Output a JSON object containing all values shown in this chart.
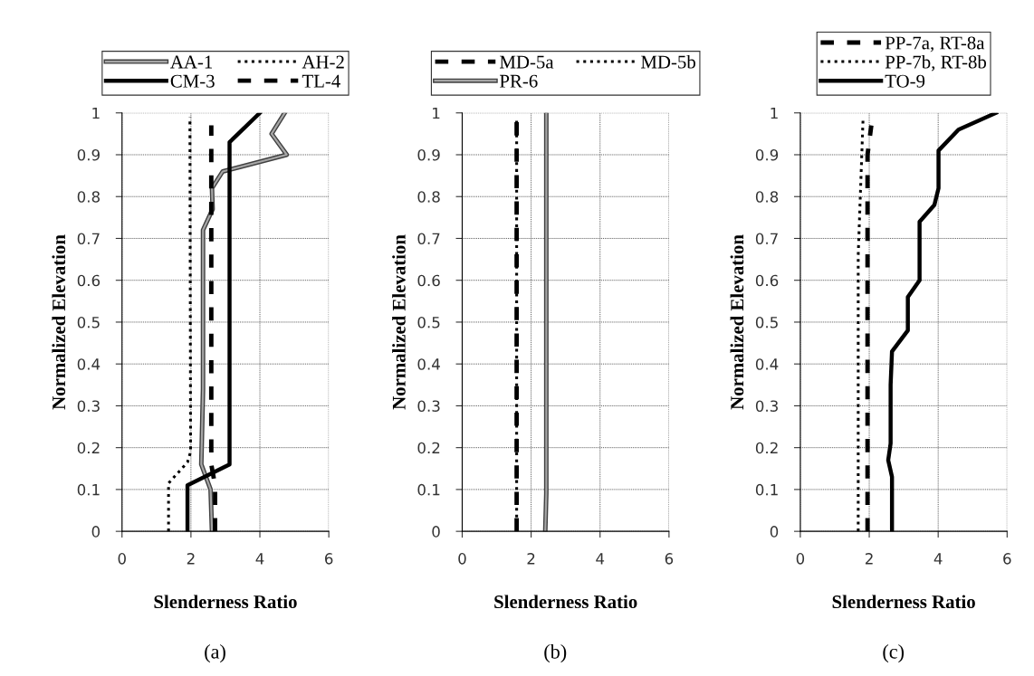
{
  "chart_data": [
    {
      "type": "line",
      "xlabel": "Slenderness Ratio",
      "ylabel": "Normalized Elevation",
      "xlim": [
        0,
        6
      ],
      "xticks": [
        0,
        2,
        4,
        6
      ],
      "ylim": [
        0,
        1
      ],
      "yticks": [
        0,
        0.1,
        0.2,
        0.3,
        0.4,
        0.5,
        0.6,
        0.7,
        0.8,
        0.9,
        1
      ],
      "grid": true,
      "legend": "top",
      "annotations": [
        "(a)"
      ],
      "series": [
        {
          "name": "AA-1",
          "color": "#a6a6a6",
          "line_style": "solid",
          "x": [
            2.61,
            2.57,
            2.3,
            2.35,
            2.35,
            2.63,
            2.61,
            2.92,
            4.78,
            4.34,
            4.72
          ],
          "values": [
            0,
            0.1,
            0.16,
            0.34,
            0.72,
            0.77,
            0.82,
            0.86,
            0.9,
            0.95,
            1.0
          ]
        },
        {
          "name": "AH-2",
          "color": "#000000",
          "line_style": "dotted",
          "x": [
            1.35,
            1.35,
            1.9,
            1.99,
            1.97
          ],
          "values": [
            0,
            0.115,
            0.165,
            0.19,
            0.99
          ]
        },
        {
          "name": "CM-3",
          "color": "#000000",
          "line_style": "solid",
          "x": [
            1.9,
            1.9,
            3.12,
            3.12,
            4.0
          ],
          "values": [
            0,
            0.11,
            0.16,
            0.93,
            1.0
          ]
        },
        {
          "name": "TL-4",
          "color": "#000000",
          "line_style": "dashed",
          "x": [
            2.7,
            2.7,
            2.59,
            2.59
          ],
          "values": [
            0,
            0.11,
            0.16,
            0.97
          ]
        }
      ]
    },
    {
      "type": "line",
      "xlabel": "Slenderness Ratio",
      "ylabel": "Normalized Elevation",
      "xlim": [
        0,
        6
      ],
      "xticks": [
        0,
        2,
        4,
        6
      ],
      "ylim": [
        0,
        1
      ],
      "yticks": [
        0,
        0.1,
        0.2,
        0.3,
        0.4,
        0.5,
        0.6,
        0.7,
        0.8,
        0.9,
        1
      ],
      "grid": true,
      "legend": "top",
      "annotations": [
        "(b)"
      ],
      "series": [
        {
          "name": "MD-5a",
          "color": "#000000",
          "line_style": "dashed",
          "x": [
            1.58,
            1.58
          ],
          "values": [
            0,
            0.99
          ]
        },
        {
          "name": "MD-5b",
          "color": "#000000",
          "line_style": "dotted",
          "x": [
            1.58,
            1.58
          ],
          "values": [
            0,
            0.99
          ]
        },
        {
          "name": "PR-6",
          "color": "#a6a6a6",
          "line_style": "solid",
          "x": [
            2.41,
            2.44,
            2.44
          ],
          "values": [
            0,
            0.09,
            1.0
          ]
        }
      ]
    },
    {
      "type": "line",
      "xlabel": "Slenderness Ratio",
      "ylabel": "Normalized Elevation",
      "xlim": [
        0,
        6
      ],
      "xticks": [
        0,
        2,
        4,
        6
      ],
      "ylim": [
        0,
        1
      ],
      "yticks": [
        0,
        0.1,
        0.2,
        0.3,
        0.4,
        0.5,
        0.6,
        0.7,
        0.8,
        0.9,
        1
      ],
      "grid": true,
      "legend": "top",
      "annotations": [
        "(c)"
      ],
      "series": [
        {
          "name": "PP-7a, RT-8a",
          "color": "#000000",
          "line_style": "dashed",
          "x": [
            1.95,
            1.95,
            2.06
          ],
          "values": [
            0,
            0.9,
            0.97
          ]
        },
        {
          "name": "PP-7b, RT-8b",
          "color": "#000000",
          "line_style": "dotted",
          "x": [
            1.68,
            1.68,
            1.82
          ],
          "values": [
            0,
            0.66,
            0.985
          ]
        },
        {
          "name": "TO-9",
          "color": "#000000",
          "line_style": "solid",
          "x": [
            2.66,
            2.66,
            2.55,
            2.62,
            2.62,
            2.66,
            3.12,
            3.12,
            3.46,
            3.46,
            3.89,
            4.01,
            4.01,
            4.59,
            5.68
          ],
          "values": [
            0,
            0.13,
            0.17,
            0.21,
            0.35,
            0.43,
            0.48,
            0.56,
            0.6,
            0.74,
            0.78,
            0.82,
            0.91,
            0.96,
            1.0
          ]
        }
      ]
    }
  ]
}
